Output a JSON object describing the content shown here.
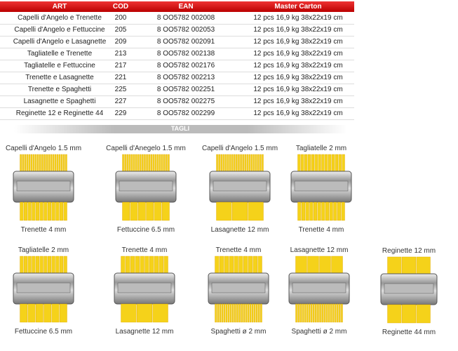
{
  "table": {
    "header": [
      "ART",
      "COD",
      "EAN",
      "Master Carton"
    ],
    "rows": [
      [
        "Capelli d'Angelo e Trenette",
        "200",
        "8 OO5782 002008",
        "12 pcs 16,9 kg 38x22x19 cm"
      ],
      [
        "Capelli d'Angelo e Fettuccine",
        "205",
        "8 OO5782 002053",
        "12 pcs 16,9 kg 38x22x19 cm"
      ],
      [
        "Capelli d'Angelo e Lasagnette",
        "209",
        "8 OO5782 002091",
        "12 pcs 16,9 kg 38x22x19 cm"
      ],
      [
        "Tagliatelle e Trenette",
        "213",
        "8 OO5782 002138",
        "12 pcs 16,9 kg 38x22x19 cm"
      ],
      [
        "Tagliatelle e Fettuccine",
        "217",
        "8 OO5782 002176",
        "12 pcs 16,9 kg 38x22x19 cm"
      ],
      [
        "Trenette e Lasagnette",
        "221",
        "8 OO5782 002213",
        "12 pcs 16,9 kg 38x22x19 cm"
      ],
      [
        "Trenette e Spaghetti",
        "225",
        "8 OO5782 002251",
        "12 pcs 16,9 kg 38x22x19 cm"
      ],
      [
        "Lasagnette e Spaghetti",
        "227",
        "8 OO5782 002275",
        "12 pcs 16,9 kg 38x22x19 cm"
      ],
      [
        "Reginette 12 e Reginette 44",
        "229",
        "8 OO5782 002299",
        "12 pcs 16,9 kg 38x22x19 cm"
      ]
    ]
  },
  "section": "TAGLI",
  "cutters": [
    {
      "top": "Capelli d'Angelo 1.5 mm",
      "bottom": "Trenette 4 mm"
    },
    {
      "top": "Capelli d'Anegelo 1.5 mm",
      "bottom": "Fettuccine 6.5 mm"
    },
    {
      "top": "Capelli d'Angelo 1.5 mm",
      "bottom": "Lasagnette 12 mm"
    },
    {
      "top": "Tagliatelle 2 mm",
      "bottom": "Trenette 4 mm"
    },
    {
      "top": "Tagliatelle 2 mm",
      "bottom": "Fettuccine 6.5 mm"
    },
    {
      "top": "Trenette 4 mm",
      "bottom": "Lasagnette 12 mm"
    },
    {
      "top": "Trenette 4 mm",
      "bottom": "Spaghetti ø 2 mm"
    },
    {
      "top": "Lasagnette 12 mm",
      "bottom": "Spaghetti ø 2 mm"
    },
    {
      "top": "Reginette 12 mm",
      "bottom": "Reginette 44 mm"
    }
  ]
}
